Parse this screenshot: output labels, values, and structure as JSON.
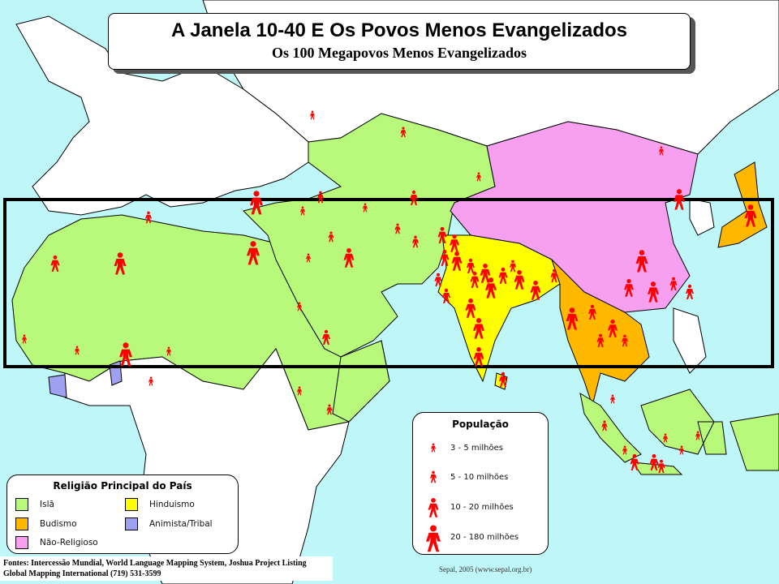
{
  "header": {
    "title": "A Janela 10-40 E Os Povos Menos Evangelizados",
    "subtitle": "Os 100 Megapovos Menos Evangelizados"
  },
  "religion_legend": {
    "title": "Religião Principal do País",
    "items": [
      {
        "label": "Islã",
        "color": "#b8f87a"
      },
      {
        "label": "Hinduismo",
        "color": "#ffff00"
      },
      {
        "label": "Budismo",
        "color": "#ffb800"
      },
      {
        "label": "Animista/Tribal",
        "color": "#a0a0f0"
      },
      {
        "label": "Não-Religioso",
        "color": "#f8a0f0"
      }
    ]
  },
  "population_legend": {
    "title": "População",
    "icon": "person-icon",
    "icon_color": "#ff0000",
    "items": [
      {
        "label": "3 - 5 milhões"
      },
      {
        "label": "5 - 10 milhões"
      },
      {
        "label": "10 - 20 milhões"
      },
      {
        "label": "20 - 180 milhões"
      }
    ]
  },
  "footer": {
    "sources": "Fontes: Intercessão Mundial, World Language Mapping System, Joshua Project Listing",
    "publisher": "Global Mapping International (719) 531-3599"
  },
  "credit": "Sepal, 2005 (www.sepal.org.br)",
  "colors": {
    "ocean": "#bff6f8",
    "other_land": "#ffffff",
    "window_frame": "#000000"
  }
}
